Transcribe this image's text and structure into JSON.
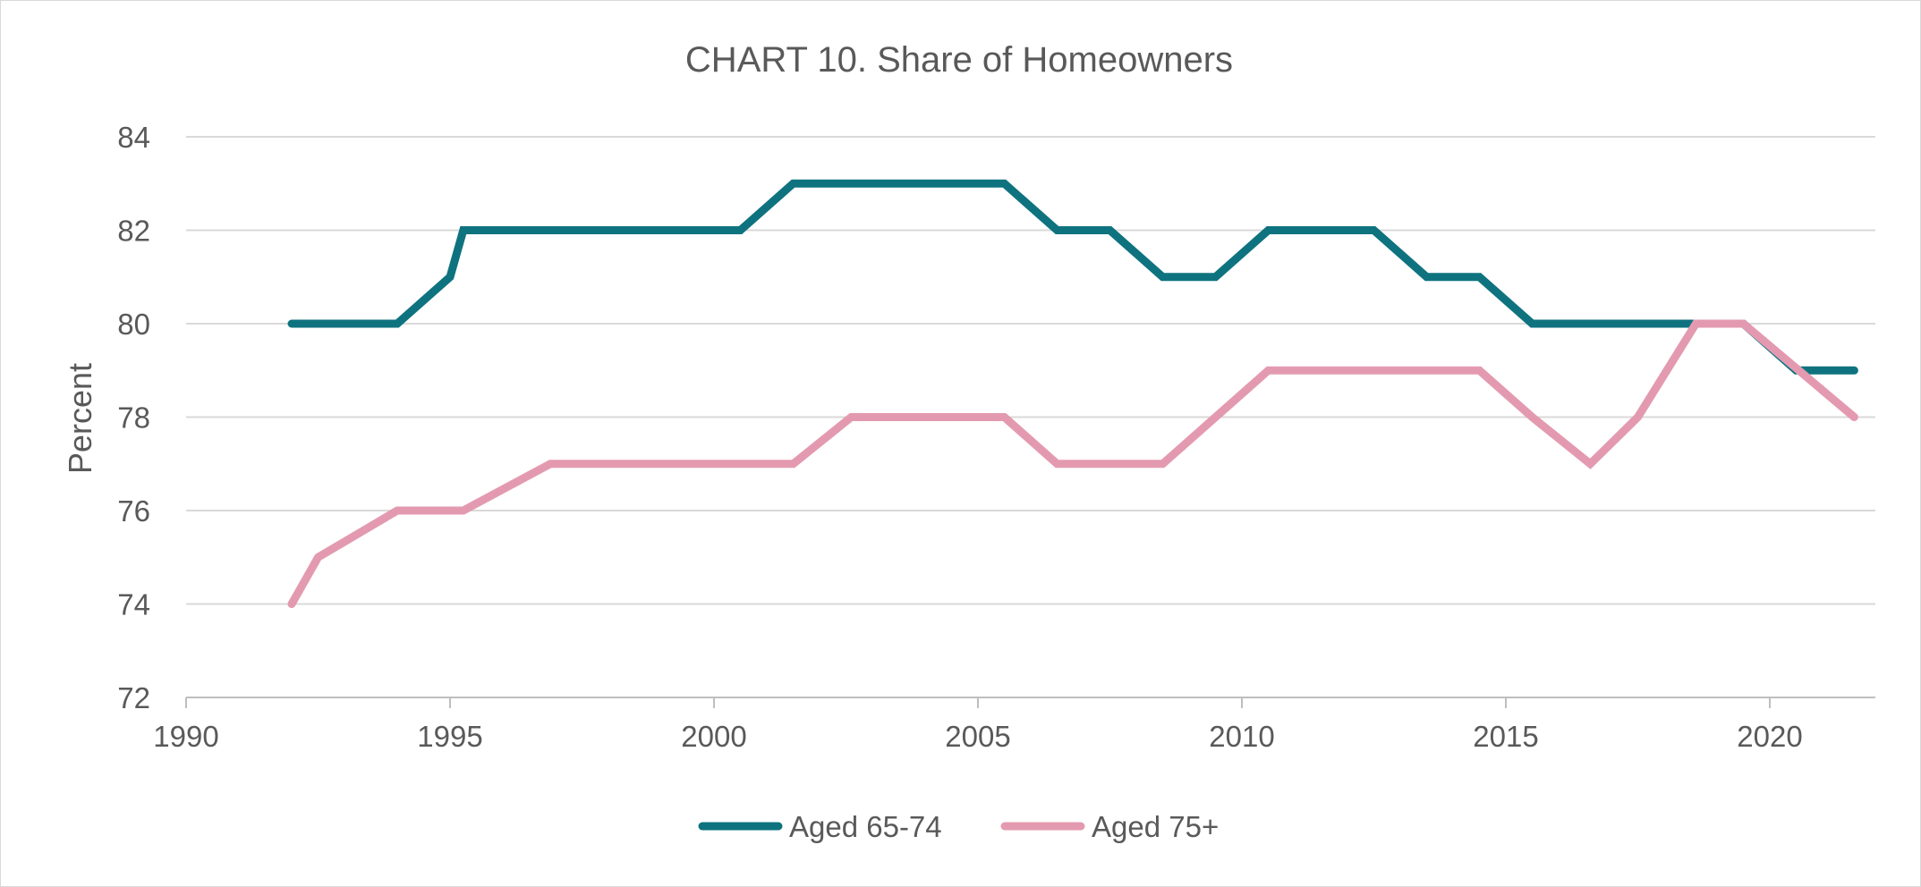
{
  "chart_data": {
    "type": "line",
    "title": "CHART 10. Share of Homeowners",
    "ylabel": "Percent",
    "xlabel": "",
    "xlim": [
      1990,
      2022
    ],
    "ylim": [
      72,
      84
    ],
    "x_ticks": [
      "1990",
      "1995",
      "2000",
      "2005",
      "2010",
      "2015",
      "2020"
    ],
    "y_ticks": [
      "72",
      "74",
      "76",
      "78",
      "80",
      "82",
      "84"
    ],
    "grid": "horizontal",
    "legend_position": "bottom",
    "series": [
      {
        "name": "Aged 65-74",
        "color": "#0e737f",
        "points": [
          [
            1992,
            80
          ],
          [
            1994,
            80
          ],
          [
            1995,
            81
          ],
          [
            1995.25,
            82
          ],
          [
            2000.5,
            82
          ],
          [
            2001.5,
            83
          ],
          [
            2005.5,
            83
          ],
          [
            2006.5,
            82
          ],
          [
            2007.5,
            82
          ],
          [
            2008.5,
            81
          ],
          [
            2009.5,
            81
          ],
          [
            2010.5,
            82
          ],
          [
            2012.5,
            82
          ],
          [
            2013.5,
            81
          ],
          [
            2014.5,
            81
          ],
          [
            2015.5,
            80
          ],
          [
            2018.5,
            80
          ],
          [
            2019.5,
            80
          ],
          [
            2020.5,
            79
          ],
          [
            2021.6,
            79
          ]
        ]
      },
      {
        "name": "Aged 75+",
        "color": "#e39ab0",
        "points": [
          [
            1992,
            74
          ],
          [
            1992.5,
            75
          ],
          [
            1994,
            76
          ],
          [
            1995.25,
            76
          ],
          [
            1996.9,
            77
          ],
          [
            2001.5,
            77
          ],
          [
            2002.6,
            78
          ],
          [
            2005.5,
            78
          ],
          [
            2006.5,
            77
          ],
          [
            2008.5,
            77
          ],
          [
            2010.5,
            79
          ],
          [
            2014.5,
            79
          ],
          [
            2015.5,
            78
          ],
          [
            2016.6,
            77
          ],
          [
            2017.5,
            78
          ],
          [
            2018.6,
            80
          ],
          [
            2019.5,
            80
          ],
          [
            2021.6,
            78
          ]
        ]
      }
    ]
  }
}
